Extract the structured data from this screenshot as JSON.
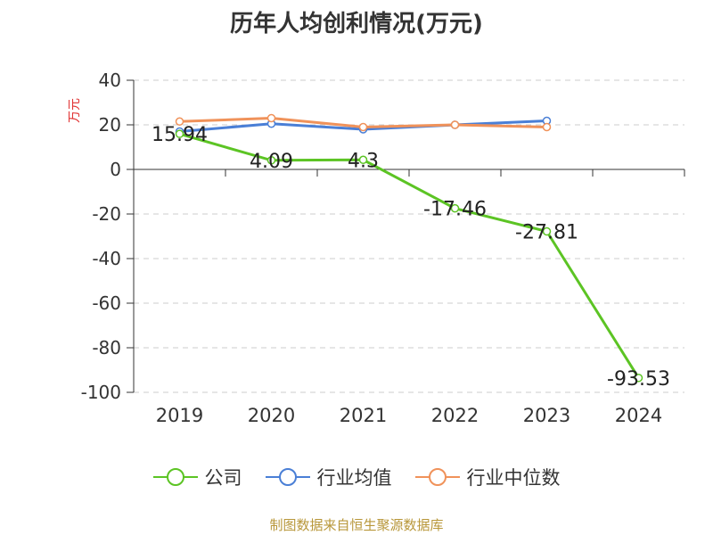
{
  "chart_data": {
    "type": "line",
    "title": "历年人均创利情况(万元)",
    "ylabel": "万元",
    "xlabel": "",
    "categories": [
      "2019",
      "2020",
      "2021",
      "2022",
      "2023",
      "2024"
    ],
    "ylim": [
      -100,
      40
    ],
    "yticks": [
      40,
      20,
      0,
      -20,
      -40,
      -60,
      -80,
      -100
    ],
    "grid": true,
    "legend_position": "bottom",
    "series": [
      {
        "name": "公司",
        "color": "#5cc424",
        "values": [
          15.94,
          4.09,
          4.3,
          -17.46,
          -27.81,
          -93.53
        ],
        "labels": [
          "15.94",
          "4.09",
          "4.3",
          "-17.46",
          "-27.81",
          "-93.53"
        ]
      },
      {
        "name": "行业均值",
        "color": "#4a7fd6",
        "values": [
          17,
          20.5,
          18,
          20,
          21.8,
          null
        ]
      },
      {
        "name": "行业中位数",
        "color": "#f0925a",
        "values": [
          21.5,
          23,
          19,
          20,
          19,
          null
        ]
      }
    ]
  },
  "source": "制图数据来自恒生聚源数据库"
}
